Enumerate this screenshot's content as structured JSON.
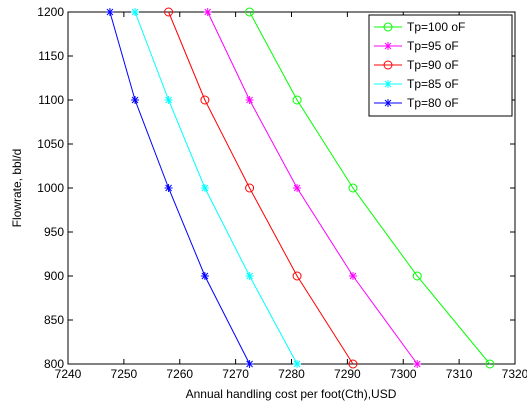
{
  "chart_data": {
    "type": "line",
    "title": "",
    "xlabel": "Annual handling cost per foot(Cth),USD",
    "ylabel": "Flowrate, bbl/d",
    "xlim": [
      7240,
      7320
    ],
    "ylim": [
      800,
      1200
    ],
    "xticks": [
      7240,
      7250,
      7260,
      7270,
      7280,
      7290,
      7300,
      7310,
      7320
    ],
    "yticks": [
      800,
      850,
      900,
      950,
      1000,
      1050,
      1100,
      1150,
      1200
    ],
    "grid": false,
    "legend_position": "top-right",
    "series": [
      {
        "name": "Tp=100 oF",
        "color": "#00ff00",
        "marker": "circle",
        "points": [
          [
            7315.5,
            800
          ],
          [
            7302.5,
            900
          ],
          [
            7291,
            1000
          ],
          [
            7281,
            1100
          ],
          [
            7272.5,
            1200
          ]
        ]
      },
      {
        "name": "Tp=95 oF",
        "color": "#ff00ff",
        "marker": "star",
        "points": [
          [
            7302.5,
            800
          ],
          [
            7291,
            900
          ],
          [
            7281,
            1000
          ],
          [
            7272.5,
            1100
          ],
          [
            7265,
            1200
          ]
        ]
      },
      {
        "name": "Tp=90 oF",
        "color": "#ff0000",
        "marker": "circle",
        "points": [
          [
            7291,
            800
          ],
          [
            7281,
            900
          ],
          [
            7272.5,
            1000
          ],
          [
            7264.5,
            1100
          ],
          [
            7258,
            1200
          ]
        ]
      },
      {
        "name": "Tp=85 oF",
        "color": "#00ffff",
        "marker": "star",
        "points": [
          [
            7281,
            800
          ],
          [
            7272.5,
            900
          ],
          [
            7264.5,
            1000
          ],
          [
            7258,
            1100
          ],
          [
            7252,
            1200
          ]
        ]
      },
      {
        "name": "Tp=80 oF",
        "color": "#0000ff",
        "marker": "star",
        "points": [
          [
            7272.5,
            800
          ],
          [
            7264.5,
            900
          ],
          [
            7258,
            1000
          ],
          [
            7252,
            1100
          ],
          [
            7247.5,
            1200
          ]
        ]
      }
    ]
  }
}
